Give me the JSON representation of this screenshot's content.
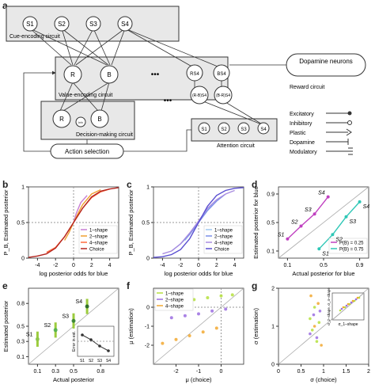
{
  "panel_letters": {
    "a": "a",
    "b": "b",
    "c": "c",
    "d": "d",
    "e": "e",
    "f": "f",
    "g": "g"
  },
  "diagram": {
    "cue_circuit_label": "Cue-encoding circuit",
    "value_circuit_label": "Value-encoding circuit",
    "decision_circuit_label": "Decision-making circuit",
    "attention_circuit_label": "Attention circuit",
    "reward_circuit_label": "Reward circuit",
    "dopamine_neurons_label": "Dopamine neurons",
    "action_selection_label": "Action selection",
    "cue_nodes": [
      "S1",
      "S2",
      "S3",
      "S4"
    ],
    "value_nodes": [
      "R",
      "B"
    ],
    "value_shape_nodes": [
      "RS4",
      "BS4"
    ],
    "value_diff_nodes": [
      "(R-B)S4",
      "(B-R)S4"
    ],
    "decision_nodes": [
      "R",
      "inh",
      "B"
    ],
    "attention_nodes": [
      "S1",
      "S2",
      "S3",
      "S4"
    ],
    "ellipsis": "•••",
    "legend": [
      "Excitatory",
      "Inhibitory",
      "Plastic",
      "Dopamine",
      "Modulatory"
    ]
  },
  "panels": {
    "b": {
      "ylabel": "P_B, Estimated posterior",
      "xlabel": "log posterior odds for blue"
    },
    "c": {
      "ylabel": "P_B, Estimated posterior",
      "xlabel": "log posterior odds for blue"
    },
    "d": {
      "ylabel": "Estimated posterior for blue",
      "xlabel": "Actual posterior for blue"
    },
    "e": {
      "ylabel": "Estimated posterior",
      "xlabel": "Actual posterior",
      "inset_ylabel": "Error in est."
    },
    "f": {
      "ylabel": "μ (estimation)",
      "xlabel": "μ (choice)"
    },
    "g": {
      "ylabel": "σ (estimation)",
      "xlabel": "σ (choice)"
    }
  },
  "chart_data": [
    {
      "panel": "b",
      "type": "line",
      "xlabel": "log posterior odds for blue",
      "ylabel": "P_B, Estimated posterior",
      "xlim": [
        -5,
        5
      ],
      "ylim": [
        0,
        1
      ],
      "x_ticks": [
        -4,
        -2,
        0,
        2,
        4
      ],
      "y_ticks": [
        0,
        0.5,
        1
      ],
      "legend": "bottom-right",
      "series": [
        {
          "name": "1–shape",
          "color": "#c77dd3",
          "x": [
            0,
            0.3,
            0.8,
            1.5
          ],
          "y": [
            0.5,
            0.63,
            0.78,
            0.88
          ]
        },
        {
          "name": "2–shape",
          "color": "#f0a030",
          "x": [
            -1,
            -0.5,
            0,
            0.5,
            1,
            2,
            3
          ],
          "y": [
            0.25,
            0.36,
            0.5,
            0.63,
            0.75,
            0.9,
            0.96
          ]
        },
        {
          "name": "4–shape",
          "color": "#ff6a3d",
          "x": [
            -3,
            -2,
            -1,
            0,
            1,
            2,
            3,
            4
          ],
          "y": [
            0.08,
            0.15,
            0.3,
            0.5,
            0.7,
            0.85,
            0.93,
            0.97
          ]
        },
        {
          "name": "Choice",
          "color": "#b3241e",
          "x": [
            -5,
            -4,
            -3,
            -2,
            -1,
            0,
            1,
            2,
            3,
            4,
            5
          ],
          "y": [
            0.01,
            0.03,
            0.06,
            0.14,
            0.3,
            0.5,
            0.7,
            0.86,
            0.94,
            0.97,
            0.99
          ]
        }
      ]
    },
    {
      "panel": "c",
      "type": "line",
      "xlabel": "log posterior odds for blue",
      "ylabel": "P_B, Estimated posterior",
      "xlim": [
        -5,
        5
      ],
      "ylim": [
        0,
        1
      ],
      "x_ticks": [
        -4,
        -2,
        0,
        2,
        4
      ],
      "y_ticks": [
        0,
        0.5,
        1
      ],
      "legend": "bottom-right",
      "series": [
        {
          "name": "1–shape",
          "color": "#9ec7ef",
          "x": [
            -1.5,
            -0.5,
            0,
            0.5,
            1.5
          ],
          "y": [
            0.25,
            0.42,
            0.5,
            0.6,
            0.75
          ]
        },
        {
          "name": "2–shape",
          "color": "#7b8fe8",
          "x": [
            -3,
            -2,
            -1,
            0,
            1,
            2,
            3
          ],
          "y": [
            0.1,
            0.2,
            0.33,
            0.5,
            0.67,
            0.8,
            0.9
          ]
        },
        {
          "name": "4–shape",
          "color": "#a88ce0",
          "x": [
            -4,
            -3,
            -2,
            -1,
            0,
            1,
            2,
            3,
            4
          ],
          "y": [
            0.06,
            0.1,
            0.2,
            0.35,
            0.52,
            0.7,
            0.82,
            0.9,
            0.95
          ]
        },
        {
          "name": "Choice",
          "color": "#5a4fd0",
          "x": [
            -5,
            -4,
            -3,
            -2,
            -1,
            0,
            1,
            2,
            3,
            4,
            5
          ],
          "y": [
            0.01,
            0.02,
            0.05,
            0.12,
            0.27,
            0.5,
            0.73,
            0.88,
            0.95,
            0.98,
            0.99
          ]
        }
      ]
    },
    {
      "panel": "d",
      "type": "line",
      "xlabel": "Actual posterior for blue",
      "ylabel": "Estimated posterior for blue",
      "xlim": [
        0,
        1
      ],
      "ylim": [
        0,
        1
      ],
      "x_ticks": [
        0.1,
        0.5,
        0.9
      ],
      "y_ticks": [
        0.1,
        0.5,
        0.9
      ],
      "legend": "bottom-right",
      "series": [
        {
          "name": "P(B) = 0.25",
          "color": "#c040c0",
          "x": [
            0.1,
            0.25,
            0.4,
            0.55
          ],
          "y": [
            0.27,
            0.45,
            0.62,
            0.86
          ]
        },
        {
          "name": "P(B) = 0.75",
          "color": "#2ec7b6",
          "x": [
            0.45,
            0.6,
            0.75,
            0.9
          ],
          "y": [
            0.13,
            0.33,
            0.58,
            0.79
          ]
        }
      ],
      "annotations_left": [
        "S1",
        "S2",
        "S3",
        "S4"
      ],
      "annotations_right": [
        "S1",
        "S2",
        "S3",
        "S4"
      ]
    },
    {
      "panel": "e",
      "type": "scatter",
      "xlabel": "Actual posterior",
      "ylabel": "Estimated posterior",
      "xlim": [
        0,
        1
      ],
      "ylim": [
        0,
        1
      ],
      "x_ticks": [
        0.1,
        0.3,
        0.5,
        0.8
      ],
      "y_ticks": [
        0.1,
        0.3,
        0.5,
        0.8
      ],
      "series": [
        {
          "name": "S1",
          "x": [
            0.1
          ],
          "y": [
            0.33
          ]
        },
        {
          "name": "S2",
          "x": [
            0.3
          ],
          "y": [
            0.45
          ]
        },
        {
          "name": "S3",
          "x": [
            0.5
          ],
          "y": [
            0.57
          ]
        },
        {
          "name": "S4",
          "x": [
            0.65
          ],
          "y": [
            0.76
          ]
        }
      ],
      "inset": {
        "ylabel": "Error in est.",
        "categories": [
          "S1",
          "S2",
          "S3",
          "S4"
        ],
        "values": [
          0.08,
          0.02,
          -0.06,
          -0.12
        ]
      }
    },
    {
      "panel": "f",
      "type": "scatter",
      "xlabel": "μ (choice)",
      "ylabel": "μ (estimation)",
      "xlim": [
        -3,
        1
      ],
      "ylim": [
        -3,
        1
      ],
      "x_ticks": [
        -2,
        -1,
        0
      ],
      "y_ticks": [
        -2,
        -1,
        0
      ],
      "legend": "top-left",
      "series": [
        {
          "name": "1–shape",
          "color": "#b5e03d",
          "x": [
            -2.4,
            -1.8,
            -1.2,
            -0.6,
            0.0,
            0.5
          ],
          "y": [
            0.15,
            0.3,
            0.4,
            0.5,
            0.6,
            0.65
          ]
        },
        {
          "name": "2–shape",
          "color": "#9b6de0",
          "x": [
            -2.2,
            -1.6,
            -1.0,
            -0.4,
            0.2
          ],
          "y": [
            -0.55,
            -0.45,
            -0.35,
            -0.2,
            -0.1
          ]
        },
        {
          "name": "4–shape",
          "color": "#f2a830",
          "x": [
            -2.6,
            -2.0,
            -1.4,
            -0.8,
            -0.2
          ],
          "y": [
            -1.9,
            -1.7,
            -1.5,
            -1.3,
            -1.1
          ]
        }
      ]
    },
    {
      "panel": "g",
      "type": "scatter",
      "xlabel": "σ (choice)",
      "ylabel": "σ (estimation)",
      "xlim": [
        0,
        2
      ],
      "ylim": [
        0,
        2
      ],
      "x_ticks": [
        0,
        0.5,
        1,
        1.5,
        2
      ],
      "y_ticks": [
        0,
        1,
        2
      ],
      "series": [
        {
          "name": "1–shape",
          "color": "#b5e03d",
          "x": [
            0.7,
            0.75,
            0.8,
            0.85,
            0.9
          ],
          "y": [
            1.2,
            0.9,
            1.5,
            0.6,
            1.1
          ]
        },
        {
          "name": "2–shape",
          "color": "#9b6de0",
          "x": [
            0.7,
            0.78,
            0.85,
            0.92
          ],
          "y": [
            0.8,
            1.3,
            0.7,
            1.4
          ]
        },
        {
          "name": "4–shape",
          "color": "#f2a830",
          "x": [
            0.72,
            0.8,
            0.88,
            0.95
          ],
          "y": [
            1.8,
            1.0,
            1.6,
            0.5
          ]
        }
      ],
      "inset": {
        "xlabel": "σ_1–shape",
        "ylabel": "σ_2–shape, σ_4–shape"
      }
    }
  ]
}
